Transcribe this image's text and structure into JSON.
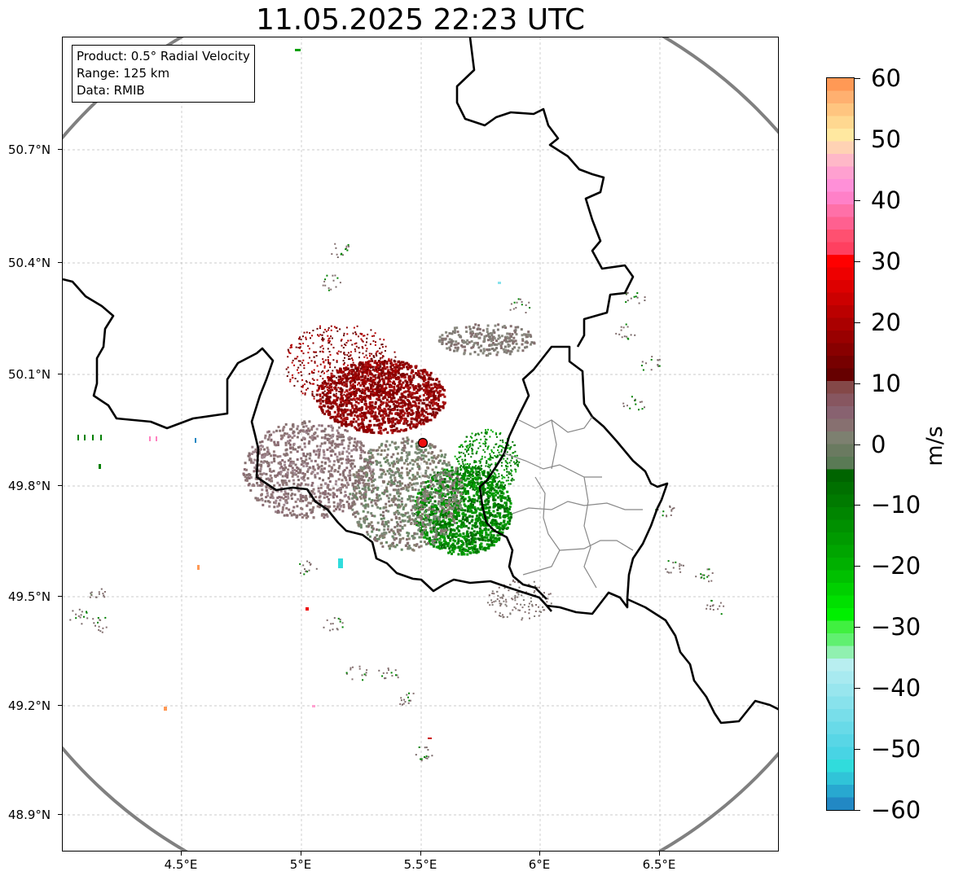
{
  "title": "11.05.2025 22:23 UTC",
  "info": {
    "product": "Product: 0.5° Radial Velocity",
    "range": "Range: 125 km",
    "data": "Data: RMIB"
  },
  "axes": {
    "y_ticks": [
      "50.7°N",
      "50.4°N",
      "50.1°N",
      "49.8°N",
      "49.5°N",
      "49.2°N",
      "48.9°N"
    ],
    "x_ticks": [
      "4.5°E",
      "5°E",
      "5.5°E",
      "6°E",
      "6.5°E"
    ]
  },
  "colorbar": {
    "label": "m/s",
    "ticks": [
      "60",
      "50",
      "40",
      "30",
      "20",
      "10",
      "0",
      "−10",
      "−20",
      "−30",
      "−40",
      "−50",
      "−60"
    ],
    "range": [
      -60,
      60
    ],
    "colors": [
      "#ff9955",
      "#ffb070",
      "#ffc580",
      "#ffd890",
      "#ffe8a0",
      "#ffd2b4",
      "#ffb8c8",
      "#ffa0d0",
      "#ff90d8",
      "#ff80c8",
      "#ff70a8",
      "#ff6090",
      "#ff5070",
      "#ff4060",
      "#ff0000",
      "#ee0000",
      "#dd0000",
      "#cc0000",
      "#bb0000",
      "#aa0000",
      "#990000",
      "#880000",
      "#770000",
      "#660000",
      "#844848",
      "#875660",
      "#886270",
      "#877070",
      "#7d8070",
      "#6a7a60",
      "#5a7a55",
      "#006400",
      "#007000",
      "#007a00",
      "#008500",
      "#009000",
      "#009a00",
      "#00a500",
      "#00b000",
      "#00c000",
      "#00d000",
      "#00e000",
      "#00f000",
      "#40f040",
      "#60f070",
      "#90f0b0",
      "#b8eef0",
      "#a8eaf0",
      "#98e6ee",
      "#88e2ec",
      "#78deea",
      "#68dae8",
      "#58d6e6",
      "#48d4e4",
      "#30dcdc",
      "#30c4d8",
      "#28a8d0",
      "#2288c4"
    ]
  },
  "radar": {
    "site_marker": "radar-site",
    "colors": {
      "approach": "#008000",
      "recede": "#8b0000",
      "near_zero": "#857070",
      "ring": "#808080",
      "border": "#000000"
    }
  }
}
